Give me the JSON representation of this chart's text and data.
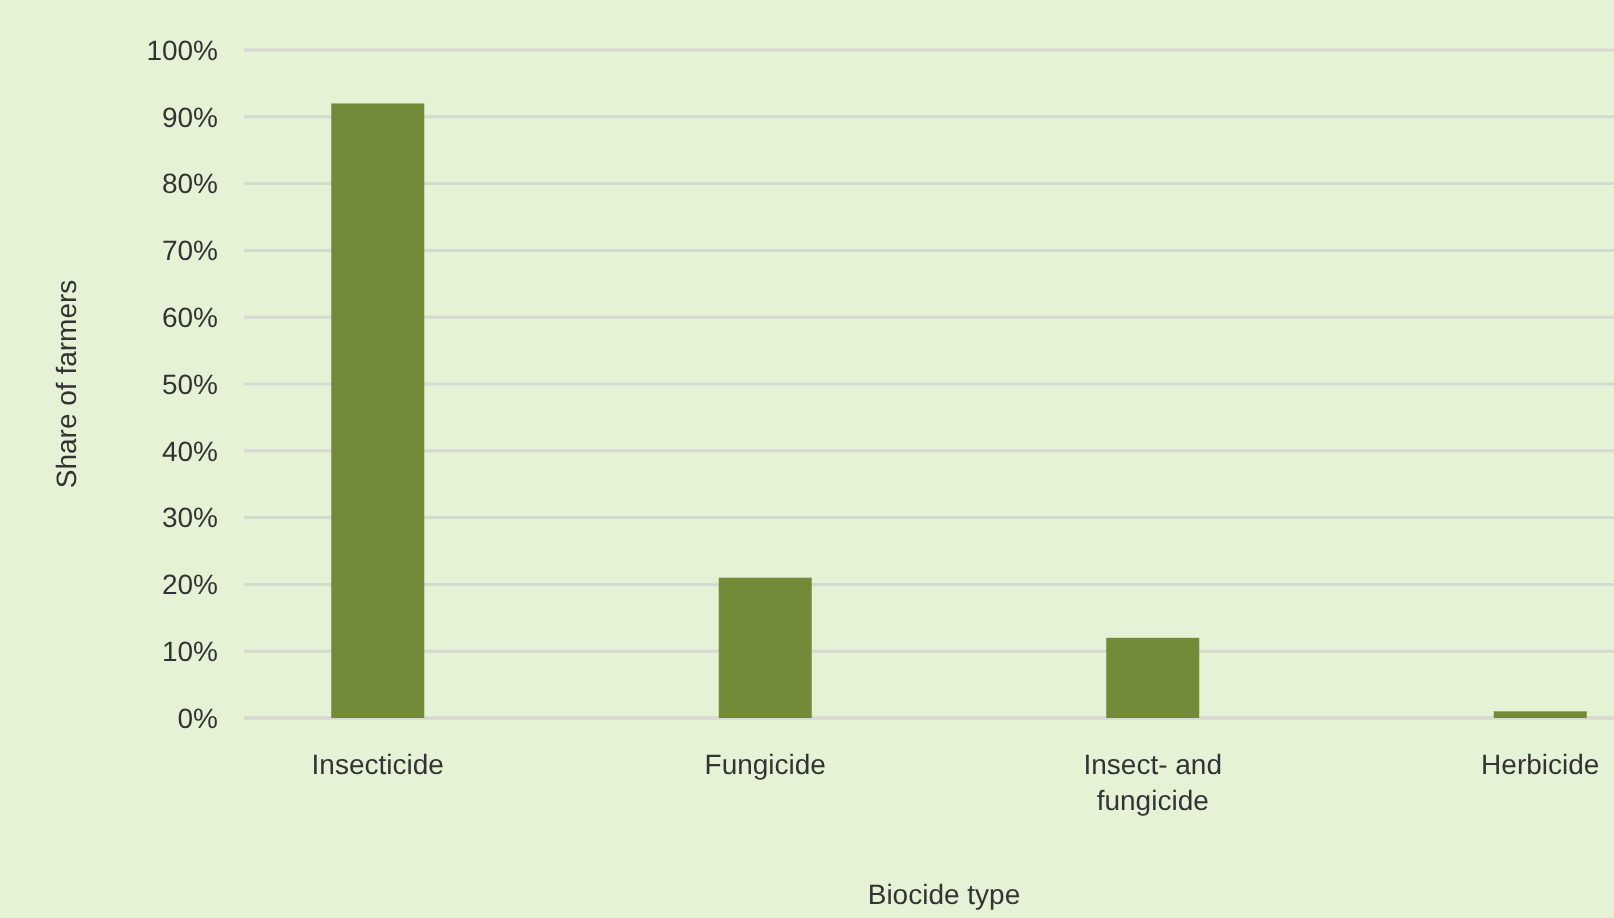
{
  "chart_data": {
    "type": "bar",
    "xlabel": "Biocide type",
    "ylabel": "Share of farmers",
    "categories": [
      "Insecticide",
      "Fungicide",
      "Insect- and fungicide",
      "Herbicide"
    ],
    "values": [
      92,
      21,
      12,
      1
    ],
    "color": "#718b38",
    "ylim": [
      0,
      100
    ],
    "yticks": [
      {
        "value": 0,
        "label": "0%"
      },
      {
        "value": 10,
        "label": "10%"
      },
      {
        "value": 20,
        "label": "20%"
      },
      {
        "value": 30,
        "label": "30%"
      },
      {
        "value": 40,
        "label": "40%"
      },
      {
        "value": 50,
        "label": "50%"
      },
      {
        "value": 60,
        "label": "60%"
      },
      {
        "value": 70,
        "label": "70%"
      },
      {
        "value": 80,
        "label": "80%"
      },
      {
        "value": 90,
        "label": "90%"
      },
      {
        "value": 100,
        "label": "100%"
      }
    ],
    "grid": true
  }
}
